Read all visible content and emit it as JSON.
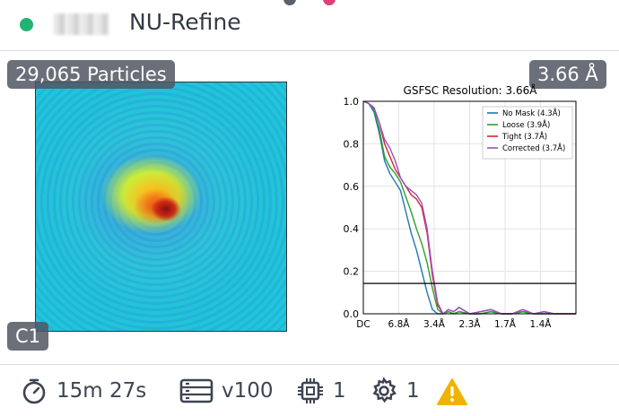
{
  "header": {
    "title": "NU-Refine"
  },
  "overlays": {
    "particles": "29,065 Particles",
    "resolution": "3.66 Å",
    "symmetry": "C1"
  },
  "chart_data": {
    "type": "line",
    "title": "GSFSC Resolution: 3.66Å",
    "xlabel": "",
    "ylabel": "",
    "x_tick_labels": [
      "DC",
      "6.8Å",
      "3.4Å",
      "2.3Å",
      "1.7Å",
      "1.4Å"
    ],
    "y_ticks": [
      0.0,
      0.2,
      0.4,
      0.6,
      0.8,
      1.0
    ],
    "ylim": [
      0,
      1.0
    ],
    "grid": true,
    "legend_position": "top-right",
    "threshold": 0.143,
    "x": [
      0,
      0.025,
      0.05,
      0.075,
      0.1,
      0.125,
      0.15,
      0.175,
      0.2,
      0.225,
      0.25,
      0.275,
      0.3,
      0.325,
      0.35,
      0.375,
      0.4,
      0.425,
      0.45,
      0.5,
      0.55,
      0.6,
      0.65,
      0.7,
      0.75,
      0.8,
      0.85,
      0.9,
      0.95,
      1.0
    ],
    "series": [
      {
        "name": "No Mask (4.3Å)",
        "color": "#1f77b4",
        "values": [
          1.0,
          0.99,
          0.95,
          0.85,
          0.72,
          0.66,
          0.62,
          0.58,
          0.48,
          0.38,
          0.3,
          0.2,
          0.1,
          0.02,
          0.0,
          0.0,
          0.01,
          0.0,
          0.01,
          0.0,
          0.0,
          0.01,
          0.0,
          0.0,
          0.01,
          0.0,
          0.0,
          0.0,
          0.0,
          0.0
        ]
      },
      {
        "name": "Loose (3.9Å)",
        "color": "#2ca02c",
        "values": [
          1.0,
          0.99,
          0.96,
          0.87,
          0.74,
          0.69,
          0.66,
          0.62,
          0.55,
          0.48,
          0.4,
          0.33,
          0.24,
          0.12,
          0.02,
          0.0,
          0.01,
          0.0,
          0.01,
          0.0,
          0.0,
          0.01,
          0.0,
          0.0,
          0.01,
          0.0,
          0.0,
          0.0,
          0.0,
          0.0
        ]
      },
      {
        "name": "Tight (3.7Å)",
        "color": "#d62728",
        "values": [
          1.0,
          0.99,
          0.97,
          0.9,
          0.8,
          0.74,
          0.68,
          0.64,
          0.6,
          0.56,
          0.54,
          0.5,
          0.38,
          0.18,
          0.04,
          0.0,
          0.02,
          0.01,
          0.03,
          0.0,
          0.01,
          0.02,
          0.0,
          0.0,
          0.02,
          0.0,
          0.01,
          0.0,
          0.0,
          0.0
        ]
      },
      {
        "name": "Corrected (3.7Å)",
        "color": "#9a4fc4",
        "values": [
          1.0,
          0.99,
          0.97,
          0.9,
          0.82,
          0.78,
          0.72,
          0.64,
          0.6,
          0.58,
          0.56,
          0.52,
          0.4,
          0.2,
          0.05,
          0.0,
          0.02,
          0.01,
          0.03,
          0.0,
          0.01,
          0.02,
          0.0,
          0.0,
          0.02,
          0.0,
          0.01,
          0.0,
          0.0,
          0.0
        ]
      }
    ]
  },
  "footer": {
    "duration": "15m 27s",
    "version": "v100",
    "gpus": "1",
    "threads": "1",
    "warning_color": "#f0b400"
  }
}
